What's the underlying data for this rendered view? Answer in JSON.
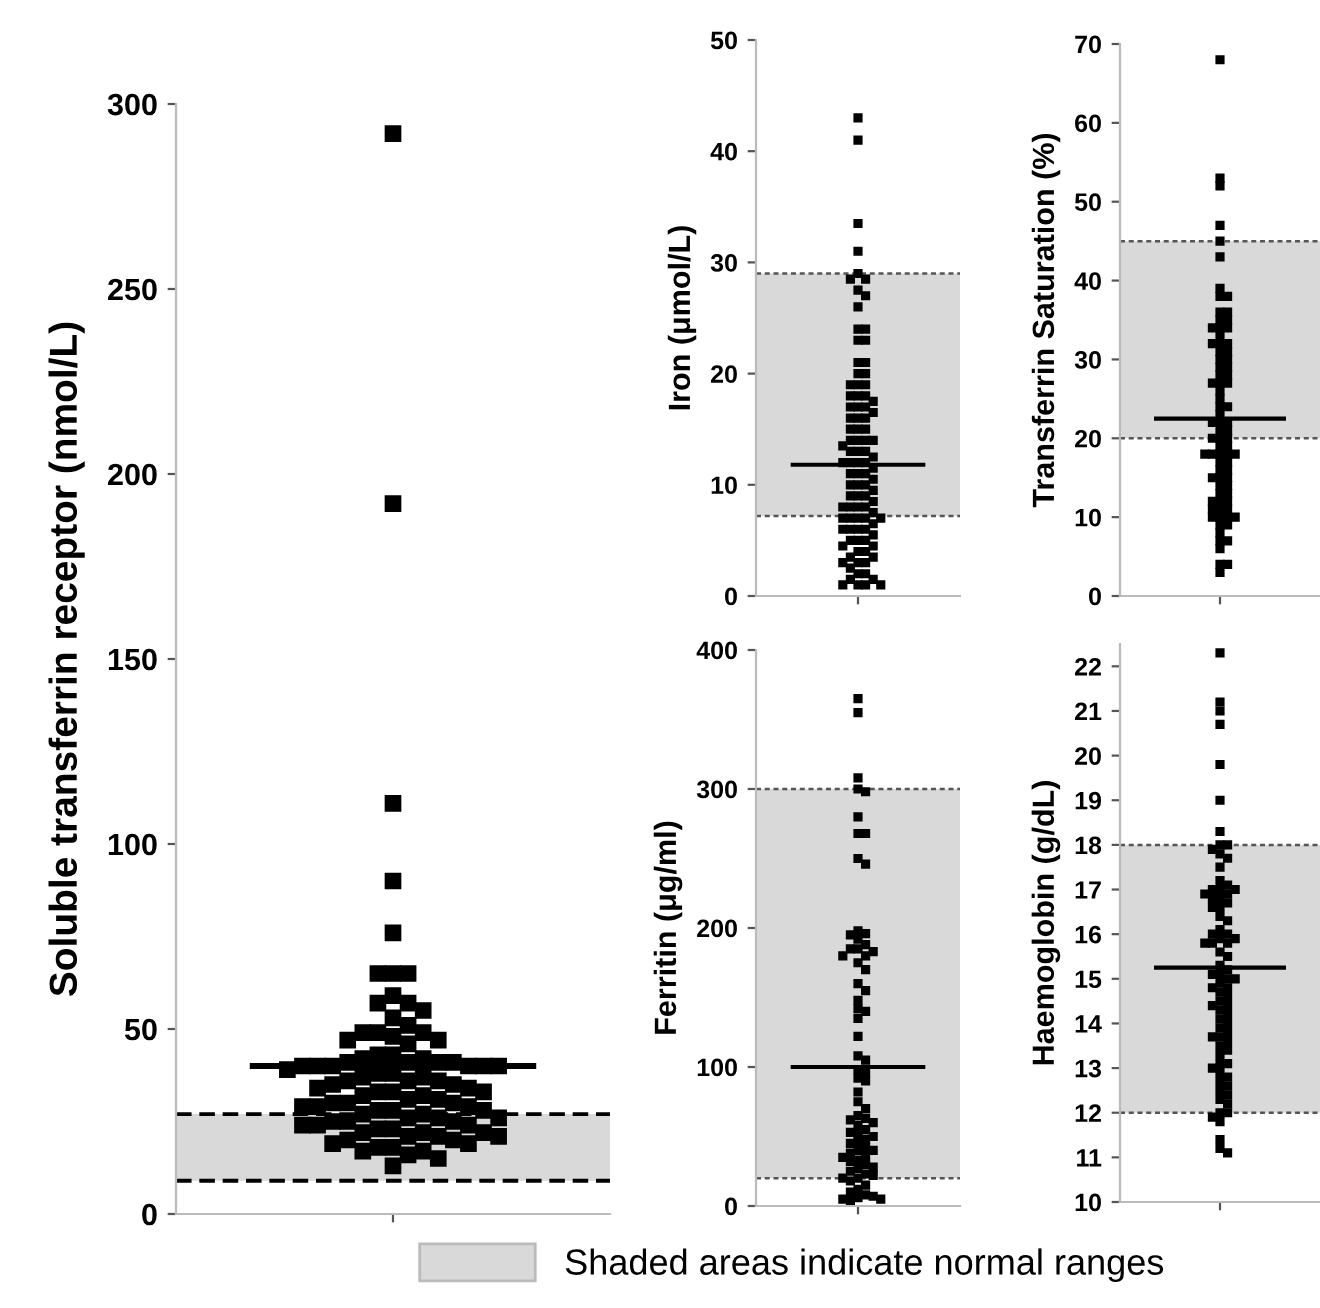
{
  "chart_data": [
    {
      "type": "scatter",
      "ylabel": "Soluble transferrin receptor (nmol/L)",
      "categories": [
        null
      ],
      "ylim": [
        0,
        300
      ],
      "yticks": [
        0,
        50,
        100,
        150,
        200,
        250,
        300
      ],
      "marker": "square",
      "legend": "bottom",
      "grid": false,
      "series": [
        {
          "color": "#000000",
          "x": [
            null,
            null,
            null,
            null,
            null,
            null,
            null,
            null,
            null,
            null,
            null,
            null,
            null,
            null,
            null,
            null,
            null,
            null,
            null,
            null,
            null,
            null,
            null,
            null,
            null,
            null,
            null,
            null,
            null,
            null,
            null,
            null,
            null,
            null,
            null,
            null,
            null,
            null,
            null,
            null,
            null,
            null,
            null,
            null,
            null,
            null,
            null,
            null,
            null,
            null,
            null,
            null,
            null,
            null,
            null,
            null,
            null,
            null,
            null,
            null,
            null,
            null,
            null,
            null,
            null,
            null,
            null,
            null,
            null,
            null,
            null,
            null,
            null,
            null,
            null,
            null,
            null,
            null,
            null,
            null,
            null,
            null,
            null,
            null,
            null,
            null,
            null,
            null,
            null,
            null,
            null,
            null,
            null
          ],
          "values": [
            292,
            192,
            111,
            90,
            76,
            65,
            65,
            65,
            59,
            57,
            57,
            55,
            53,
            51,
            49,
            49,
            49,
            48,
            47,
            47,
            46,
            43,
            43,
            42,
            42,
            41,
            41,
            41,
            41,
            40,
            40,
            40,
            40,
            40,
            40,
            39,
            38,
            38,
            37,
            37,
            36,
            36,
            36,
            35,
            35,
            34,
            34,
            33,
            33,
            33,
            32,
            32,
            31,
            31,
            30,
            30,
            30,
            29,
            29,
            29,
            28,
            28,
            28,
            27,
            27,
            26,
            26,
            26,
            25,
            25,
            25,
            24,
            24,
            24,
            23,
            23,
            22,
            22,
            22,
            21,
            21,
            21,
            20,
            20,
            19,
            19,
            18,
            18,
            17,
            17,
            16,
            15,
            13
          ]
        }
      ],
      "ref_lines": [
        {
          "axis": "y",
          "value": 40,
          "color": "#000000",
          "line_style": "solid"
        },
        {
          "axis": "y",
          "value": 9,
          "color": "#000000",
          "line_style": "dashed"
        },
        {
          "axis": "y",
          "value": 27,
          "color": "#000000",
          "line_style": "dashed"
        }
      ],
      "bands": [
        {
          "axis": "y",
          "from": 9,
          "to": 27,
          "label": "Shaded areas indicate normal ranges",
          "color": "#d9d9d9"
        }
      ]
    },
    {
      "type": "scatter",
      "ylabel": "Iron (μmol/L)",
      "categories": [
        null
      ],
      "ylim": [
        0,
        50
      ],
      "yticks": [
        0,
        10,
        20,
        30,
        40,
        50
      ],
      "marker": "square",
      "grid": false,
      "series": [
        {
          "color": "#000000",
          "x": [
            null,
            null,
            null,
            null,
            null,
            null,
            null,
            null,
            null,
            null,
            null,
            null,
            null,
            null,
            null,
            null,
            null,
            null,
            null,
            null,
            null,
            null,
            null,
            null,
            null,
            null,
            null,
            null,
            null,
            null,
            null,
            null,
            null,
            null,
            null,
            null,
            null,
            null,
            null,
            null,
            null,
            null,
            null,
            null,
            null,
            null,
            null,
            null,
            null,
            null,
            null,
            null,
            null,
            null,
            null,
            null,
            null,
            null,
            null,
            null,
            null,
            null,
            null,
            null,
            null,
            null,
            null,
            null,
            null,
            null,
            null,
            null,
            null,
            null,
            null,
            null,
            null,
            null,
            null,
            null,
            null,
            null,
            null,
            null,
            null,
            null,
            null,
            null,
            null,
            null,
            null,
            null,
            null,
            null,
            null,
            null,
            null,
            null
          ],
          "values": [
            43,
            41,
            33.5,
            31,
            29,
            28.5,
            28.5,
            27.5,
            27,
            26,
            24,
            24,
            23,
            23,
            21,
            21,
            20,
            20,
            19,
            19,
            19,
            18,
            18,
            18,
            17.5,
            17,
            17,
            17,
            16.5,
            16,
            16,
            16,
            15,
            15,
            15,
            14,
            14,
            14,
            14,
            13.5,
            13,
            13,
            13,
            12.5,
            12,
            12,
            12,
            12,
            11.5,
            11,
            11,
            11,
            10.5,
            10,
            10,
            10,
            9.5,
            9,
            9,
            9,
            8.5,
            8,
            8,
            8,
            8,
            7.5,
            7,
            7,
            7,
            7,
            7,
            6.5,
            6,
            6,
            6,
            6,
            5.5,
            5,
            5,
            5,
            4.5,
            4.5,
            4,
            4,
            3.5,
            3.5,
            3,
            3,
            3,
            2.5,
            2,
            2,
            1.5,
            1.5,
            1,
            1,
            1,
            1
          ]
        }
      ],
      "ref_lines": [
        {
          "axis": "y",
          "value": 11.8,
          "color": "#000000",
          "line_style": "solid"
        },
        {
          "axis": "y",
          "value": 7.2,
          "color": "#555555",
          "line_style": "dotted"
        },
        {
          "axis": "y",
          "value": 29,
          "color": "#555555",
          "line_style": "dotted"
        }
      ],
      "bands": [
        {
          "axis": "y",
          "from": 7.2,
          "to": 29,
          "color": "#d9d9d9"
        }
      ]
    },
    {
      "type": "scatter",
      "ylabel": "Transferrin Saturation (%)",
      "categories": [
        null
      ],
      "ylim": [
        0,
        70
      ],
      "yticks": [
        0,
        10,
        20,
        30,
        40,
        50,
        60,
        70
      ],
      "marker": "square",
      "grid": false,
      "series": [
        {
          "color": "#000000",
          "x": [
            null,
            null,
            null,
            null,
            null,
            null,
            null,
            null,
            null,
            null,
            null,
            null,
            null,
            null,
            null,
            null,
            null,
            null,
            null,
            null,
            null,
            null,
            null,
            null,
            null,
            null,
            null,
            null,
            null,
            null,
            null,
            null,
            null,
            null,
            null,
            null,
            null,
            null,
            null,
            null,
            null,
            null,
            null,
            null,
            null,
            null,
            null,
            null,
            null,
            null,
            null,
            null,
            null,
            null,
            null,
            null,
            null,
            null,
            null,
            null,
            null,
            null,
            null,
            null,
            null,
            null,
            null,
            null,
            null,
            null,
            null,
            null,
            null,
            null,
            null,
            null,
            null,
            null,
            null,
            null,
            null
          ],
          "values": [
            68,
            53,
            52,
            47,
            45,
            43,
            39,
            38,
            38,
            36,
            36,
            35,
            35,
            34,
            34,
            34,
            33,
            32,
            32,
            32,
            31,
            31,
            30,
            30,
            29,
            29,
            28,
            28,
            27,
            27,
            27,
            26,
            25,
            24,
            24,
            23,
            22,
            22,
            22,
            21,
            21,
            20,
            20,
            20,
            19,
            19,
            18,
            18,
            18,
            18,
            18,
            17,
            17,
            16,
            16,
            15,
            15,
            15,
            14,
            14,
            13,
            13,
            12,
            12,
            12,
            11,
            11,
            11,
            10,
            10,
            10,
            10,
            9,
            9,
            8,
            7,
            7,
            6,
            4,
            4,
            3
          ]
        }
      ],
      "ref_lines": [
        {
          "axis": "y",
          "value": 22.5,
          "color": "#000000",
          "line_style": "solid"
        },
        {
          "axis": "y",
          "value": 20,
          "color": "#555555",
          "line_style": "dotted"
        },
        {
          "axis": "y",
          "value": 45,
          "color": "#555555",
          "line_style": "dotted"
        }
      ],
      "bands": [
        {
          "axis": "y",
          "from": 20,
          "to": 45,
          "color": "#d9d9d9"
        }
      ]
    },
    {
      "type": "scatter",
      "ylabel": "Ferritin (μg/ml)",
      "categories": [
        null
      ],
      "ylim": [
        0,
        400
      ],
      "yticks": [
        0,
        100,
        200,
        300,
        400
      ],
      "marker": "square",
      "grid": false,
      "series": [
        {
          "color": "#000000",
          "x": [
            null,
            null,
            null,
            null,
            null,
            null,
            null,
            null,
            null,
            null,
            null,
            null,
            null,
            null,
            null,
            null,
            null,
            null,
            null,
            null,
            null,
            null,
            null,
            null,
            null,
            null,
            null,
            null,
            null,
            null,
            null,
            null,
            null,
            null,
            null,
            null,
            null,
            null,
            null,
            null,
            null,
            null,
            null,
            null,
            null,
            null,
            null,
            null,
            null,
            null,
            null,
            null,
            null,
            null,
            null,
            null,
            null,
            null,
            null,
            null,
            null,
            null,
            null,
            null,
            null,
            null,
            null,
            null,
            null,
            null,
            null,
            null,
            null,
            null,
            null,
            null
          ],
          "values": [
            365,
            355,
            308,
            300,
            298,
            280,
            268,
            268,
            250,
            246,
            198,
            196,
            195,
            192,
            188,
            185,
            185,
            183,
            180,
            180,
            175,
            170,
            160,
            155,
            148,
            142,
            140,
            135,
            122,
            108,
            105,
            98,
            96,
            92,
            90,
            82,
            75,
            70,
            65,
            63,
            62,
            60,
            58,
            55,
            53,
            52,
            50,
            48,
            46,
            45,
            42,
            40,
            40,
            38,
            36,
            35,
            33,
            32,
            30,
            28,
            27,
            25,
            23,
            22,
            20,
            20,
            18,
            15,
            12,
            10,
            8,
            7,
            6,
            5,
            5,
            4
          ]
        }
      ],
      "ref_lines": [
        {
          "axis": "y",
          "value": 100,
          "color": "#000000",
          "line_style": "solid"
        },
        {
          "axis": "y",
          "value": 20,
          "color": "#555555",
          "line_style": "dotted"
        },
        {
          "axis": "y",
          "value": 300,
          "color": "#555555",
          "line_style": "dotted"
        }
      ],
      "bands": [
        {
          "axis": "y",
          "from": 20,
          "to": 300,
          "color": "#d9d9d9"
        }
      ]
    },
    {
      "type": "scatter",
      "ylabel": "Haemoglobin (g/dL)",
      "categories": [
        null
      ],
      "ylim": [
        10,
        22.5
      ],
      "yticks": [
        10,
        11,
        12,
        13,
        14,
        15,
        16,
        17,
        18,
        19,
        20,
        21,
        22
      ],
      "marker": "square",
      "grid": false,
      "series": [
        {
          "color": "#000000",
          "x": [
            null,
            null,
            null,
            null,
            null,
            null,
            null,
            null,
            null,
            null,
            null,
            null,
            null,
            null,
            null,
            null,
            null,
            null,
            null,
            null,
            null,
            null,
            null,
            null,
            null,
            null,
            null,
            null,
            null,
            null,
            null,
            null,
            null,
            null,
            null,
            null,
            null,
            null,
            null,
            null,
            null,
            null,
            null,
            null,
            null,
            null,
            null,
            null,
            null,
            null,
            null,
            null,
            null,
            null,
            null,
            null,
            null,
            null,
            null,
            null,
            null,
            null,
            null,
            null,
            null,
            null,
            null,
            null,
            null,
            null,
            null,
            null,
            null,
            null,
            null,
            null,
            null,
            null,
            null,
            null,
            null
          ],
          "values": [
            22.3,
            21.2,
            21.0,
            20.7,
            19.8,
            19.0,
            18.3,
            18.0,
            18.0,
            17.9,
            17.8,
            17.7,
            17.5,
            17.2,
            17.1,
            17.0,
            17.0,
            17.0,
            16.9,
            16.9,
            16.8,
            16.8,
            16.7,
            16.6,
            16.6,
            16.4,
            16.3,
            16.1,
            16.0,
            16.0,
            15.9,
            15.9,
            15.8,
            15.8,
            15.8,
            15.6,
            15.5,
            15.3,
            15.2,
            15.1,
            15.1,
            15.0,
            15.0,
            14.9,
            14.8,
            14.8,
            14.7,
            14.6,
            14.5,
            14.4,
            14.4,
            14.3,
            14.2,
            14.1,
            14.0,
            13.9,
            13.8,
            13.7,
            13.7,
            13.6,
            13.5,
            13.4,
            13.3,
            13.1,
            13.1,
            13.0,
            12.9,
            12.8,
            12.7,
            12.6,
            12.5,
            12.4,
            12.3,
            12.2,
            12.0,
            12.0,
            11.9,
            11.8,
            11.4,
            11.2,
            11.1
          ]
        }
      ],
      "ref_lines": [
        {
          "axis": "y",
          "value": 15.25,
          "color": "#000000",
          "line_style": "solid"
        },
        {
          "axis": "y",
          "value": 12,
          "color": "#555555",
          "line_style": "dotted"
        },
        {
          "axis": "y",
          "value": 18,
          "color": "#555555",
          "line_style": "dotted"
        }
      ],
      "bands": [
        {
          "axis": "y",
          "from": 12,
          "to": 18,
          "color": "#d9d9d9"
        }
      ]
    }
  ]
}
